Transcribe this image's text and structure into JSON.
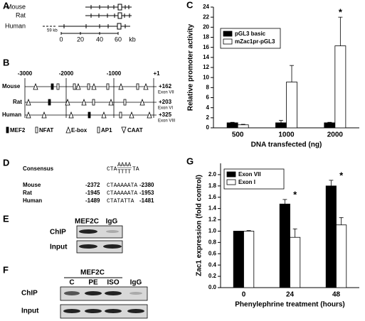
{
  "panels": {
    "A": {
      "label": "A",
      "species": [
        "Mouse",
        "Rat",
        "Human"
      ],
      "scale": [
        "0",
        "20",
        "40",
        "60"
      ],
      "unit": "kb",
      "gap": "59 kb"
    },
    "B": {
      "label": "B",
      "scale": [
        "-3000",
        "-2000",
        "-1000",
        "+1"
      ],
      "species": [
        "Mouse",
        "Rat",
        "Human"
      ],
      "ends": [
        {
          "pos": "+162",
          "exon": "Exon VII"
        },
        {
          "pos": "+203",
          "exon": "Exon VI"
        },
        {
          "pos": "+325",
          "exon": "Exon VIII"
        }
      ],
      "legend": [
        "MEF2",
        "NFAT",
        "E-box",
        "AP1",
        "CAAT"
      ]
    },
    "D": {
      "label": "D",
      "consensus": "Consensus",
      "motif": [
        "CTA",
        "AAAA",
        "TTTT",
        "TA"
      ],
      "rows": [
        [
          "Mouse",
          "-2372",
          "CTAAAAATA",
          "-2380"
        ],
        [
          "Rat",
          "-1945",
          "CTAAAAATA",
          "-1953"
        ],
        [
          "Human",
          "-1489",
          "CTATATTA",
          "-1481"
        ]
      ]
    },
    "E": {
      "label": "E",
      "lanes": [
        "MEF2C",
        "IgG"
      ],
      "rows": [
        "ChIP",
        "Input"
      ]
    },
    "F": {
      "label": "F",
      "group": "MEF2C",
      "lanes": [
        "C",
        "PE",
        "ISO",
        "IgG"
      ],
      "rows": [
        "ChIP",
        "Input"
      ]
    }
  },
  "chart_data": [
    {
      "type": "bar",
      "panel_label": "C",
      "ylabel": "Relative promoter activity",
      "xlabel": "DNA transfected (ng)",
      "categories": [
        "500",
        "1000",
        "2000"
      ],
      "series": [
        {
          "name": "pGL3 basic",
          "color": "#000000",
          "values": [
            1.0,
            1.0,
            1.0
          ],
          "errors": [
            0.1,
            0.5,
            0.1
          ]
        },
        {
          "name": "mZac1pr-pGL3",
          "color": "#ffffff",
          "values": [
            0.6,
            9.1,
            16.3
          ],
          "errors": [
            0.1,
            3.3,
            5.7
          ]
        }
      ],
      "ylim": [
        0,
        24
      ],
      "yticks": [
        0,
        2,
        4,
        6,
        8,
        10,
        12,
        14,
        16,
        18,
        20,
        22,
        24
      ],
      "annotations": [
        {
          "text": "*",
          "category": "2000"
        }
      ],
      "legend": "upper left"
    },
    {
      "type": "bar",
      "panel_label": "G",
      "ylabel": "Zac1 expression (fold control)",
      "xlabel": "Phenylephrine treatment (hours)",
      "categories": [
        "0",
        "24",
        "48"
      ],
      "series": [
        {
          "name": "Exon VII",
          "color": "#000000",
          "values": [
            1.0,
            1.48,
            1.8
          ],
          "errors": [
            0,
            0.08,
            0.1
          ]
        },
        {
          "name": "Exon I",
          "color": "#ffffff",
          "values": [
            1.0,
            0.89,
            1.11
          ],
          "errors": [
            0.01,
            0.15,
            0.13
          ]
        }
      ],
      "ylim": [
        0,
        2.2
      ],
      "yticks": [
        {
          "value": 0,
          "label": "0.0"
        },
        {
          "value": 0.2,
          "label": "0.2"
        },
        {
          "value": 0.4,
          "label": "0.4"
        },
        {
          "value": 0.6,
          "label": "0.6"
        },
        {
          "value": 0.8,
          "label": "0.8"
        },
        {
          "value": 1.0,
          "label": "1.0"
        },
        {
          "value": 1.2,
          "label": "1.2"
        },
        {
          "value": 1.4,
          "label": "1.4"
        },
        {
          "value": 1.6,
          "label": "1.6"
        },
        {
          "value": 1.8,
          "label": "1.8"
        },
        {
          "value": 2.0,
          "label": "2.0"
        }
      ],
      "annotations": [
        {
          "text": "*",
          "category": "24"
        },
        {
          "text": "*",
          "category": "48"
        }
      ],
      "legend": "upper left"
    }
  ]
}
